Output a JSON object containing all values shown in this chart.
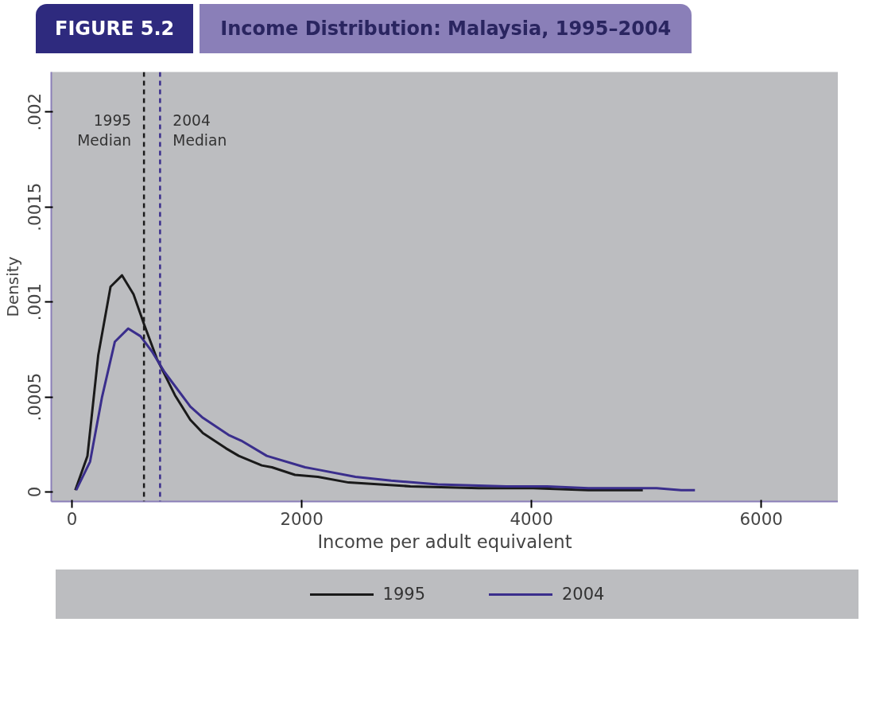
{
  "chart_data": {
    "type": "line",
    "subtitle": "FIGURE 5.2",
    "title": "Income Distribution: Malaysia, 1995–2004",
    "xlabel": "Income per adult equivalent",
    "ylabel": "Density",
    "xlim": [
      -180,
      6670
    ],
    "ylim": [
      -5e-05,
      0.00221
    ],
    "xticks": [
      0,
      2000,
      4000,
      6000
    ],
    "yticks": [
      {
        "value": 0,
        "label": "0"
      },
      {
        "value": 0.0005,
        "label": ".0005"
      },
      {
        "value": 0.001,
        "label": ".001"
      },
      {
        "value": 0.0015,
        "label": ".0015"
      },
      {
        "value": 0.002,
        "label": ".002"
      }
    ],
    "grid": false,
    "legend": "bottom",
    "line_style": "solid",
    "ref_lines": [
      {
        "axis": "x",
        "value": 627,
        "label": "1995\nMedian",
        "color": "#1a1a1a",
        "line_style": "dashed"
      },
      {
        "axis": "x",
        "value": 767,
        "label": "2004\nMedian",
        "color": "#3a2e8c",
        "line_style": "dashed"
      }
    ],
    "series": [
      {
        "name": "1995",
        "color": "#1a1a1a",
        "x": [
          29,
          135,
          229,
          336,
          436,
          536,
          629,
          740,
          896,
          1030,
          1140,
          1340,
          1452,
          1652,
          1741,
          1941,
          2141,
          2408,
          2946,
          3542,
          4015,
          4495,
          4969
        ],
        "values": [
          1e-05,
          0.00019,
          0.00072,
          0.00108,
          0.00114,
          0.00104,
          0.00088,
          0.0007,
          0.00051,
          0.00038,
          0.00031,
          0.00023,
          0.00019,
          0.00014,
          0.00013,
          9e-05,
          8e-05,
          5e-05,
          3e-05,
          2e-05,
          2e-05,
          1e-05,
          1e-05
        ]
      },
      {
        "name": "2004",
        "color": "#3a2e8c",
        "x": [
          37,
          158,
          262,
          373,
          489,
          596,
          696,
          807,
          1030,
          1140,
          1363,
          1474,
          1696,
          2030,
          2119,
          2468,
          2779,
          3184,
          3780,
          4137,
          4495,
          4971,
          5089,
          5303,
          5423
        ],
        "values": [
          1e-05,
          0.00016,
          0.0005,
          0.00079,
          0.00086,
          0.00082,
          0.00074,
          0.00063,
          0.00045,
          0.00039,
          0.0003,
          0.00027,
          0.00019,
          0.00013,
          0.00012,
          8e-05,
          6e-05,
          4e-05,
          3e-05,
          3e-05,
          2e-05,
          2e-05,
          2e-05,
          1e-05,
          1e-05
        ]
      }
    ]
  }
}
